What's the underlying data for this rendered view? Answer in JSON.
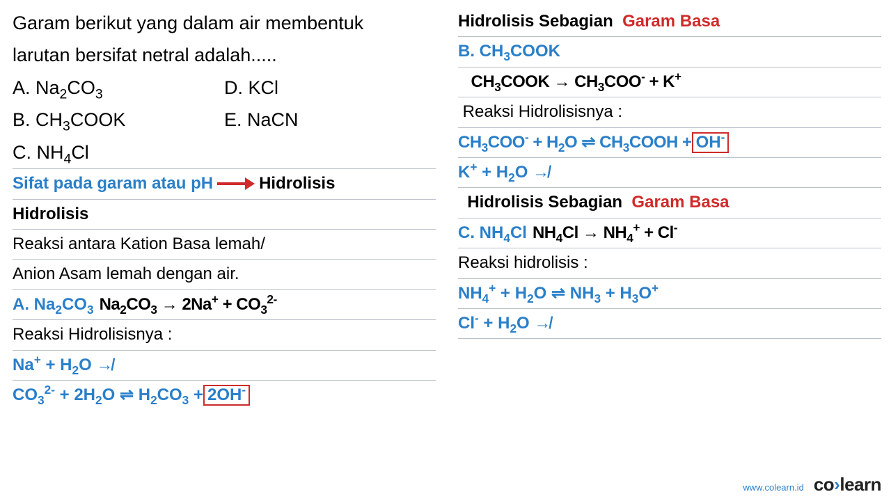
{
  "colors": {
    "blue": "#2a7fc9",
    "red": "#d02a2a",
    "black": "#111111",
    "rule": "#b8c0c8",
    "bg": "#ffffff"
  },
  "left": {
    "question_l1": "Garam berikut yang dalam air membentuk",
    "question_l2": "larutan bersifat netral adalah.....",
    "optA_label": "A. Na",
    "optA_sub": "2",
    "optA_tail": "CO",
    "optA_sub2": "3",
    "optD_label": "D. KCl",
    "optB_label": "B. CH",
    "optB_sub": "3",
    "optB_tail": "COOK",
    "optE_label": "E. NaCN",
    "optC_label": "C. NH",
    "optC_sub": "4",
    "optC_tail": "Cl",
    "sifat_l": "Sifat pada garam atau pH",
    "sifat_r": "Hidrolisis",
    "hid_title": "Hidrolisis",
    "hid_def1": "Reaksi antara Kation Basa lemah/",
    "hid_def2": "Anion Asam lemah dengan air.",
    "A_label": "A.  Na",
    "A_sub": "2",
    "A_mid": "CO",
    "A_sub2": "3",
    "A_eq_l": "Na",
    "A_eq_l2": "CO",
    "A_eq_r": " → 2Na",
    "A_eq_r2": " + CO",
    "rxn_label": "Reaksi Hidrolisisnya :",
    "A_r1_l": "Na",
    "A_r1_mid": " + H",
    "A_r1_tail": "O  ↛",
    "A_r2_l": "CO",
    "A_r2_mid": " + 2H",
    "A_r2_o": "O ⇌ H",
    "A_r2_co": "CO",
    "A_r2_plus": " + ",
    "A_r2_box": "2OH"
  },
  "right": {
    "hdr1_l": "Hidrolisis Sebagian",
    "hdr1_r": "Garam Basa",
    "B_label": "B.  CH",
    "B_tail": "COOK",
    "B_eq_l": "CH",
    "B_eq_l2": "COOK → CH",
    "B_eq_l3": "COO",
    "B_eq_r": " + K",
    "rxn_label": "Reaksi Hidrolisisnya :",
    "B_r1_l": "CH",
    "B_r1_l2": "COO",
    "B_r1_mid": " + H",
    "B_r1_mid2": "O ⇌ CH",
    "B_r1_mid3": "COOH + ",
    "B_r1_box": "OH",
    "B_r2_l": "K",
    "B_r2_mid": " + H",
    "B_r2_tail": "O  ↛",
    "hdr2_l": "Hidrolisis Sebagian",
    "hdr2_r": "Garam Basa",
    "C_label": "C.  NH",
    "C_tail": "Cl",
    "C_eq_l": "NH",
    "C_eq_l2": "Cl → NH",
    "C_eq_r": " + Cl",
    "C_rxn": "Reaksi hidrolisis :",
    "C_r1_l": "NH",
    "C_r1_mid": " + H",
    "C_r1_mid2": "O ⇌ NH",
    "C_r1_tail": " + H",
    "C_r1_tail2": "O",
    "C_r2_l": "Cl",
    "C_r2_mid": " + H",
    "C_r2_tail": "O  ↛"
  },
  "footer": {
    "url": "www.colearn.id",
    "logo_l": "co",
    "logo_dot": "›",
    "logo_r": "learn"
  }
}
